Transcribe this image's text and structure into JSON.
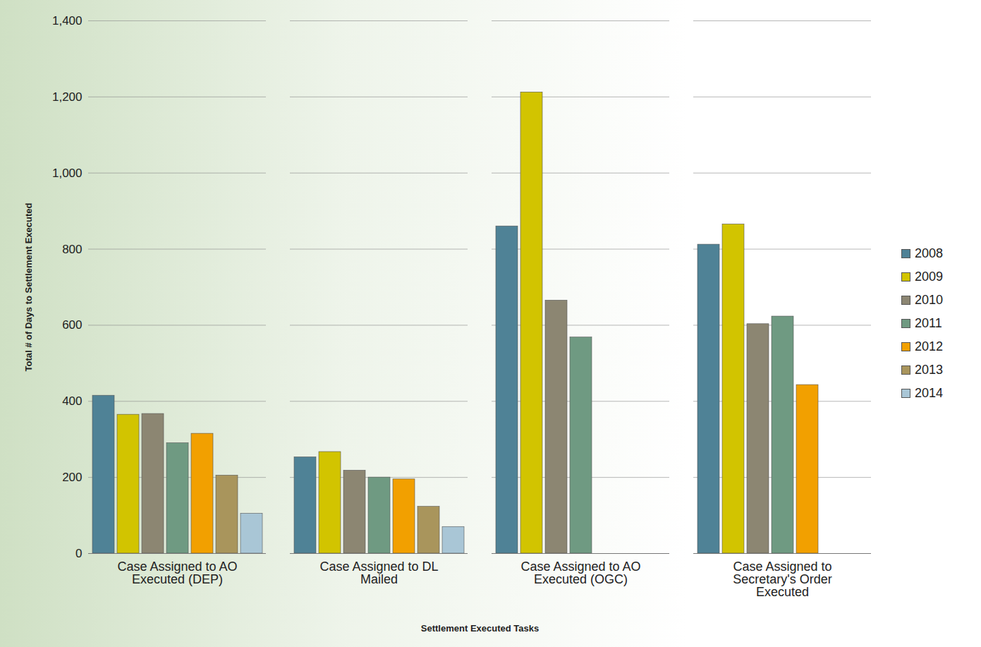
{
  "chart_data": {
    "type": "bar",
    "x_label": "Settlement Executed Tasks",
    "y_label": "Total # of Days to Settlement Executed",
    "categories": [
      "Case Assigned to AO Executed (DEP)",
      "Case Assigned to DL Mailed",
      "Case Assigned to AO Executed (OGC)",
      "Case Assigned to Secretary's Order Executed"
    ],
    "series": [
      {
        "name": "2008",
        "color": "#4f8296",
        "values": [
          415,
          253,
          860,
          812
        ]
      },
      {
        "name": "2009",
        "color": "#d2c400",
        "values": [
          365,
          267,
          1212,
          865
        ]
      },
      {
        "name": "2010",
        "color": "#8c8672",
        "values": [
          367,
          218,
          665,
          603
        ]
      },
      {
        "name": "2011",
        "color": "#6f9a82",
        "values": [
          290,
          200,
          568,
          623
        ]
      },
      {
        "name": "2012",
        "color": "#f2a000",
        "values": [
          315,
          195,
          null,
          443
        ]
      },
      {
        "name": "2013",
        "color": "#a9955c",
        "values": [
          205,
          123,
          null,
          null
        ]
      },
      {
        "name": "2014",
        "color": "#a9c6d6",
        "values": [
          105,
          70,
          null,
          null
        ]
      }
    ],
    "ylim": [
      0,
      1400
    ],
    "yticks": [
      0,
      200,
      400,
      600,
      800,
      1000,
      1200,
      1400
    ],
    "grid": true,
    "legend": "right"
  }
}
